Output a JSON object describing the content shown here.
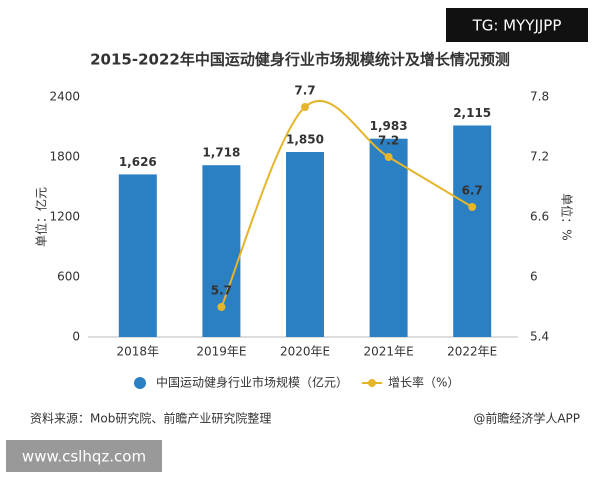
{
  "chart_data": {
    "type": "bar",
    "title": "2015-2022年中国运动健身行业市场规模统计及增长情况预测",
    "ylabel": "单位：亿元",
    "y2label": "单位：%",
    "categories": [
      "2018年",
      "2019年E",
      "2020年E",
      "2021年E",
      "2022年E"
    ],
    "series": [
      {
        "name": "中国运动健身行业市场规模（亿元）",
        "type": "bar",
        "color": "#2b7fc3",
        "values": [
          1626,
          1718,
          1850,
          1983,
          2115
        ],
        "value_labels": [
          "1,626",
          "1,718",
          "1,850",
          "1,983",
          "2,115"
        ]
      },
      {
        "name": "增长率（%）",
        "type": "line",
        "axis": "y2",
        "color": "#e5b52c",
        "values": [
          null,
          5.7,
          7.7,
          7.2,
          6.7
        ]
      }
    ],
    "ylim": [
      0,
      2400
    ],
    "yticks": [
      0,
      600,
      1200,
      1800,
      2400
    ],
    "y2lim": [
      5.4,
      7.8
    ],
    "y2ticks": [
      5.4,
      6,
      6.6,
      7.2,
      7.8
    ],
    "source": "资料来源：Mob研究院、前瞻产业研究院整理",
    "credit": "@前瞻经济学人APP",
    "watermark_top": "TG: MYYJJPP",
    "watermark_bottom": "www.cslhqz.com"
  }
}
